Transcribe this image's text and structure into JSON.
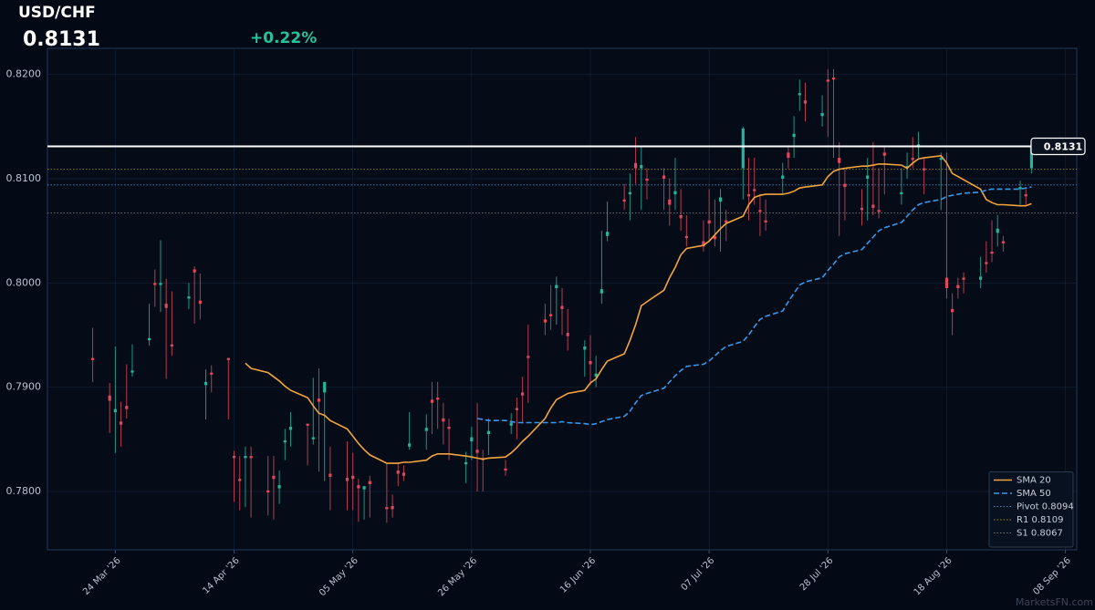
{
  "chart_data": {
    "type": "candlestick",
    "title": "USD/CHF",
    "last_price": 0.8131,
    "change": "+0.22%",
    "watermark": "MarketsFN.com",
    "up_color": "#26b59a",
    "down_color": "#e2475d",
    "last_price_color": "#ffffff",
    "grid": true,
    "legend": "lower right",
    "xlim": [
      "2026-03-12",
      "2026-09-10"
    ],
    "ylim": [
      0.7744,
      0.8225
    ],
    "yticks": [
      {
        "value": 0.78,
        "label": "0.7800"
      },
      {
        "value": 0.79,
        "label": "0.7900"
      },
      {
        "value": 0.8,
        "label": "0.8000"
      },
      {
        "value": 0.81,
        "label": "0.8100"
      },
      {
        "value": 0.82,
        "label": "0.8200"
      }
    ],
    "xticks": [
      {
        "value": "2026-03-24",
        "label": "24 Mar '26"
      },
      {
        "value": "2026-04-14",
        "label": "14 Apr '26"
      },
      {
        "value": "2026-05-05",
        "label": "05 May '26"
      },
      {
        "value": "2026-05-26",
        "label": "26 May '26"
      },
      {
        "value": "2026-06-16",
        "label": "16 Jun '26"
      },
      {
        "value": "2026-07-07",
        "label": "07 Jul '26"
      },
      {
        "value": "2026-07-28",
        "label": "28 Jul '26"
      },
      {
        "value": "2026-08-18",
        "label": "18 Aug '26"
      },
      {
        "value": "2026-09-08",
        "label": "08 Sep '26"
      }
    ],
    "x": [
      "2026-03-20",
      "2026-03-23",
      "2026-03-24",
      "2026-03-25",
      "2026-03-26",
      "2026-03-27",
      "2026-03-30",
      "2026-03-31",
      "2026-04-01",
      "2026-04-02",
      "2026-04-03",
      "2026-04-06",
      "2026-04-07",
      "2026-04-08",
      "2026-04-09",
      "2026-04-10",
      "2026-04-13",
      "2026-04-14",
      "2026-04-15",
      "2026-04-16",
      "2026-04-17",
      "2026-04-20",
      "2026-04-21",
      "2026-04-22",
      "2026-04-23",
      "2026-04-24",
      "2026-04-27",
      "2026-04-28",
      "2026-04-29",
      "2026-04-30",
      "2026-05-01",
      "2026-05-04",
      "2026-05-05",
      "2026-05-06",
      "2026-05-07",
      "2026-05-08",
      "2026-05-11",
      "2026-05-12",
      "2026-05-13",
      "2026-05-14",
      "2026-05-15",
      "2026-05-18",
      "2026-05-19",
      "2026-05-20",
      "2026-05-21",
      "2026-05-22",
      "2026-05-25",
      "2026-05-26",
      "2026-05-27",
      "2026-05-28",
      "2026-05-29",
      "2026-06-01",
      "2026-06-02",
      "2026-06-03",
      "2026-06-04",
      "2026-06-05",
      "2026-06-08",
      "2026-06-09",
      "2026-06-10",
      "2026-06-11",
      "2026-06-12",
      "2026-06-15",
      "2026-06-16",
      "2026-06-17",
      "2026-06-18",
      "2026-06-19",
      "2026-06-22",
      "2026-06-23",
      "2026-06-24",
      "2026-06-25",
      "2026-06-26",
      "2026-06-29",
      "2026-06-30",
      "2026-07-01",
      "2026-07-02",
      "2026-07-03",
      "2026-07-06",
      "2026-07-07",
      "2026-07-08",
      "2026-07-09",
      "2026-07-10",
      "2026-07-13",
      "2026-07-14",
      "2026-07-15",
      "2026-07-16",
      "2026-07-17",
      "2026-07-20",
      "2026-07-21",
      "2026-07-22",
      "2026-07-23",
      "2026-07-24",
      "2026-07-27",
      "2026-07-28",
      "2026-07-29",
      "2026-07-30",
      "2026-07-31",
      "2026-08-03",
      "2026-08-04",
      "2026-08-05",
      "2026-08-06",
      "2026-08-07",
      "2026-08-10",
      "2026-08-11",
      "2026-08-12",
      "2026-08-13",
      "2026-08-14",
      "2026-08-17",
      "2026-08-18",
      "2026-08-19",
      "2026-08-20",
      "2026-08-21",
      "2026-08-24",
      "2026-08-25",
      "2026-08-26",
      "2026-08-27",
      "2026-08-28",
      "2026-08-31",
      "2026-09-01",
      "2026-09-02"
    ],
    "open": [
      0.7928,
      0.7892,
      0.7876,
      0.7867,
      0.7882,
      0.7914,
      0.7945,
      0.8,
      0.7998,
      0.798,
      0.7941,
      0.7985,
      0.8013,
      0.7983,
      0.7902,
      0.7914,
      0.7928,
      0.7834,
      0.7812,
      0.7832,
      0.7834,
      0.7801,
      0.7815,
      0.7803,
      0.7847,
      0.7859,
      0.7865,
      0.785,
      0.7889,
      0.7895,
      0.7817,
      0.7813,
      0.7815,
      0.7806,
      0.7802,
      0.781,
      0.7785,
      0.7786,
      0.782,
      0.7818,
      0.7843,
      0.7858,
      0.7888,
      0.789,
      0.787,
      0.7862,
      0.7826,
      0.7848,
      0.784,
      0.7832,
      0.7855,
      0.7822,
      0.7863,
      0.788,
      0.7895,
      0.793,
      0.7965,
      0.797,
      0.7995,
      0.7978,
      0.7952,
      0.7936,
      0.7925,
      0.791,
      0.799,
      0.8045,
      0.808,
      0.8085,
      0.8115,
      0.811,
      0.81,
      0.8103,
      0.808,
      0.8085,
      0.8065,
      0.8045,
      0.804,
      0.806,
      0.8045,
      0.8078,
      0.806,
      0.811,
      0.8085,
      0.809,
      0.807,
      0.806,
      0.81,
      0.8125,
      0.814,
      0.818,
      0.8175,
      0.816,
      0.8195,
      0.8197,
      0.812,
      0.8095,
      0.8072,
      0.81,
      0.8075,
      0.807,
      0.8125,
      0.8085,
      0.811,
      0.812,
      0.813,
      0.811,
      0.8118,
      0.8005,
      0.7975,
      0.7998,
      0.8005,
      0.8003,
      0.802,
      0.803,
      0.8048,
      0.804,
      0.809,
      0.8085,
      0.811
    ],
    "high": [
      0.7957,
      0.7904,
      0.7939,
      0.7886,
      0.7922,
      0.7941,
      0.798,
      0.8013,
      0.8041,
      0.8004,
      0.7992,
      0.8,
      0.8016,
      0.8009,
      0.7917,
      0.7921,
      0.7928,
      0.7839,
      0.7834,
      0.7843,
      0.7843,
      0.7834,
      0.7834,
      0.782,
      0.786,
      0.7876,
      0.7865,
      0.7909,
      0.7918,
      0.7905,
      0.7843,
      0.7848,
      0.7837,
      0.7812,
      0.7805,
      0.7815,
      0.7827,
      0.7797,
      0.7827,
      0.7825,
      0.7876,
      0.7874,
      0.7905,
      0.7905,
      0.7885,
      0.787,
      0.7838,
      0.7862,
      0.7885,
      0.784,
      0.787,
      0.783,
      0.7875,
      0.789,
      0.791,
      0.796,
      0.798,
      0.7998,
      0.8006,
      0.7995,
      0.7975,
      0.7945,
      0.795,
      0.793,
      0.805,
      0.8078,
      0.8095,
      0.8105,
      0.814,
      0.813,
      0.811,
      0.811,
      0.81,
      0.812,
      0.809,
      0.8065,
      0.806,
      0.809,
      0.808,
      0.809,
      0.807,
      0.815,
      0.812,
      0.812,
      0.8085,
      0.808,
      0.8115,
      0.813,
      0.816,
      0.8195,
      0.8192,
      0.818,
      0.8205,
      0.8205,
      0.8135,
      0.811,
      0.809,
      0.812,
      0.8135,
      0.811,
      0.813,
      0.811,
      0.8125,
      0.814,
      0.8145,
      0.812,
      0.8125,
      0.8125,
      0.799,
      0.8005,
      0.801,
      0.8025,
      0.804,
      0.806,
      0.8065,
      0.8045,
      0.8098,
      0.809,
      0.8135
    ],
    "low": [
      0.7905,
      0.7856,
      0.7837,
      0.7843,
      0.787,
      0.791,
      0.794,
      0.7977,
      0.7972,
      0.7908,
      0.793,
      0.7975,
      0.7961,
      0.7965,
      0.7869,
      0.7895,
      0.7869,
      0.779,
      0.7782,
      0.7785,
      0.7775,
      0.7777,
      0.7773,
      0.7788,
      0.783,
      0.7843,
      0.7825,
      0.7845,
      0.7819,
      0.781,
      0.7782,
      0.7782,
      0.7782,
      0.7771,
      0.7773,
      0.7775,
      0.777,
      0.7775,
      0.7805,
      0.781,
      0.784,
      0.784,
      0.7855,
      0.786,
      0.7845,
      0.783,
      0.7808,
      0.783,
      0.78,
      0.78,
      0.7835,
      0.7815,
      0.7855,
      0.785,
      0.7865,
      0.7885,
      0.795,
      0.7955,
      0.796,
      0.795,
      0.7935,
      0.791,
      0.7902,
      0.79,
      0.798,
      0.804,
      0.807,
      0.806,
      0.8095,
      0.807,
      0.808,
      0.807,
      0.8055,
      0.807,
      0.805,
      0.8035,
      0.803,
      0.804,
      0.8035,
      0.803,
      0.804,
      0.808,
      0.806,
      0.8075,
      0.8045,
      0.805,
      0.8085,
      0.811,
      0.812,
      0.8165,
      0.8155,
      0.815,
      0.814,
      0.812,
      0.8045,
      0.806,
      0.8055,
      0.806,
      0.8065,
      0.8062,
      0.8085,
      0.8075,
      0.81,
      0.811,
      0.812,
      0.8085,
      0.807,
      0.7985,
      0.795,
      0.7985,
      0.799,
      0.7995,
      0.801,
      0.802,
      0.8035,
      0.803,
      0.8075,
      0.8075,
      0.8105
    ],
    "close": [
      0.7926,
      0.7887,
      0.7879,
      0.7864,
      0.7879,
      0.7916,
      0.7947,
      0.7998,
      0.8,
      0.7976,
      0.7939,
      0.7987,
      0.801,
      0.798,
      0.7905,
      0.7912,
      0.7926,
      0.7832,
      0.781,
      0.7834,
      0.7832,
      0.7799,
      0.7812,
      0.7806,
      0.7849,
      0.7862,
      0.7863,
      0.7852,
      0.7886,
      0.7905,
      0.7814,
      0.781,
      0.7812,
      0.7803,
      0.7805,
      0.7807,
      0.7783,
      0.7783,
      0.7817,
      0.7815,
      0.7846,
      0.7861,
      0.7885,
      0.7888,
      0.7867,
      0.786,
      0.7828,
      0.7852,
      0.7837,
      0.783,
      0.7858,
      0.782,
      0.7866,
      0.7878,
      0.7892,
      0.7928,
      0.7962,
      0.7968,
      0.7998,
      0.7975,
      0.7949,
      0.7939,
      0.7922,
      0.7913,
      0.7994,
      0.8049,
      0.8078,
      0.8087,
      0.811,
      0.8113,
      0.8098,
      0.81,
      0.8075,
      0.8088,
      0.8062,
      0.8043,
      0.8035,
      0.8057,
      0.8042,
      0.8082,
      0.8058,
      0.8148,
      0.8083,
      0.8088,
      0.8068,
      0.8058,
      0.8103,
      0.812,
      0.8143,
      0.8182,
      0.8172,
      0.8163,
      0.8193,
      0.8195,
      0.8115,
      0.8092,
      0.807,
      0.8103,
      0.8072,
      0.8068,
      0.8122,
      0.8087,
      0.8112,
      0.8118,
      0.8133,
      0.8108,
      0.812,
      0.7995,
      0.7972,
      0.7995,
      0.8003,
      0.8006,
      0.8018,
      0.8028,
      0.8052,
      0.8038,
      0.8092,
      0.8083,
      0.8131
    ],
    "series": [
      {
        "name": "SMA 20",
        "color": "#f2a53c",
        "dash": "solid",
        "values": [
          null,
          null,
          null,
          null,
          null,
          null,
          null,
          null,
          null,
          null,
          null,
          null,
          null,
          null,
          null,
          null,
          null,
          null,
          null,
          0.7923,
          0.7918,
          0.7914,
          0.791,
          0.7906,
          0.7901,
          0.7897,
          0.789,
          0.7882,
          0.7875,
          0.7873,
          0.7868,
          0.786,
          0.7853,
          0.7846,
          0.784,
          0.7835,
          0.7827,
          0.7827,
          0.7827,
          0.7828,
          0.7828,
          0.783,
          0.7834,
          0.7836,
          0.7836,
          0.7836,
          0.7834,
          0.7833,
          0.7832,
          0.7831,
          0.7832,
          0.7833,
          0.7837,
          0.7842,
          0.7848,
          0.7853,
          0.787,
          0.788,
          0.7888,
          0.7891,
          0.7894,
          0.7897,
          0.7904,
          0.7908,
          0.7917,
          0.7925,
          0.7932,
          0.7945,
          0.796,
          0.7978,
          0.7982,
          0.7993,
          0.8005,
          0.8015,
          0.8027,
          0.8033,
          0.8036,
          0.804,
          0.8046,
          0.8052,
          0.8057,
          0.8064,
          0.8075,
          0.8082,
          0.8084,
          0.8085,
          0.8085,
          0.8086,
          0.8088,
          0.8091,
          0.8092,
          0.8094,
          0.8102,
          0.8107,
          0.8109,
          0.811,
          0.8112,
          0.8112,
          0.8113,
          0.8114,
          0.8114,
          0.8113,
          0.811,
          0.8115,
          0.8119,
          0.812,
          0.8122,
          0.8115,
          0.8105,
          0.8102,
          0.8099,
          0.809,
          0.808,
          0.8077,
          0.8075,
          0.8075,
          0.8074,
          0.8074,
          0.8076
        ]
      },
      {
        "name": "SMA 50",
        "color": "#3b97e6",
        "dash": "dashed",
        "values": [
          null,
          null,
          null,
          null,
          null,
          null,
          null,
          null,
          null,
          null,
          null,
          null,
          null,
          null,
          null,
          null,
          null,
          null,
          null,
          null,
          null,
          null,
          null,
          null,
          null,
          null,
          null,
          null,
          null,
          null,
          null,
          null,
          null,
          null,
          null,
          null,
          null,
          null,
          null,
          null,
          null,
          null,
          null,
          null,
          null,
          null,
          null,
          null,
          0.787,
          0.7869,
          0.7868,
          0.7868,
          0.7867,
          0.7866,
          0.7866,
          0.7866,
          0.7866,
          0.7866,
          0.7866,
          0.7867,
          0.7866,
          0.7865,
          0.7864,
          0.7865,
          0.7867,
          0.7869,
          0.7872,
          0.7877,
          0.7885,
          0.7892,
          0.7894,
          0.7899,
          0.7905,
          0.7911,
          0.7916,
          0.792,
          0.7922,
          0.7925,
          0.793,
          0.7935,
          0.7939,
          0.7944,
          0.795,
          0.7958,
          0.7965,
          0.7968,
          0.7973,
          0.7982,
          0.799,
          0.7998,
          0.8001,
          0.8005,
          0.8012,
          0.8018,
          0.8025,
          0.8028,
          0.8032,
          0.8038,
          0.8044,
          0.805,
          0.8053,
          0.8058,
          0.8064,
          0.807,
          0.8075,
          0.8077,
          0.808,
          0.8083,
          0.8084,
          0.8085,
          0.8086,
          0.8087,
          0.8089,
          0.809,
          0.809,
          0.809,
          0.809,
          0.8091,
          0.8092
        ]
      }
    ],
    "levels": [
      {
        "name": "Pivot 0.8094",
        "value": 0.8094,
        "color": "#4f86c6"
      },
      {
        "name": "R1 0.8109",
        "value": 0.8109,
        "color": "#a8842f"
      },
      {
        "name": "S1 0.8067",
        "value": 0.8067,
        "color": "#7a7a7a"
      }
    ]
  }
}
